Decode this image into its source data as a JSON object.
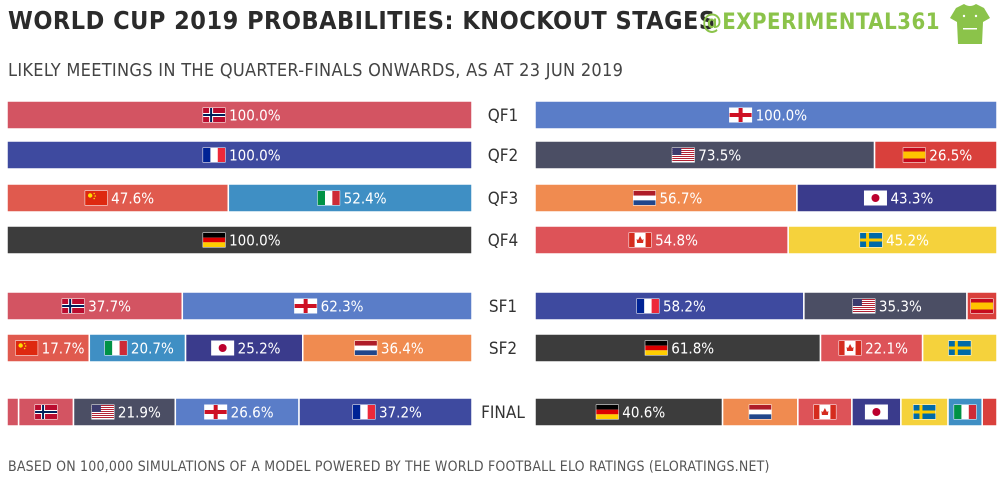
{
  "header": {
    "title": "WORLD CUP 2019 PROBABILITIES: KNOCKOUT STAGES",
    "subtitle": "LIKELY MEETINGS IN THE QUARTER-FINALS ONWARDS, AS AT 23 JUN 2019",
    "handle": "@EXPERIMENTAL361"
  },
  "footer": {
    "note": "BASED ON 100,000 SIMULATIONS OF A MODEL POWERED BY THE WORLD FOOTBALL ELO RATINGS (ELORATINGS.NET)"
  },
  "colors": {
    "NOR": "#d35462",
    "FRA": "#3e4a9f",
    "CHN": "#e05a4e",
    "ITA": "#3f8fc4",
    "GER": "#3c3c3c",
    "ENG": "#5a7dc8",
    "USA": "#4b4e64",
    "ESP": "#d9403c",
    "NED": "#f08b50",
    "JPN": "#3a3b8c",
    "CAN": "#dd5358",
    "SWE": "#f5d23c"
  },
  "chart_data": {
    "type": "bar",
    "stages": [
      "QF1",
      "QF2",
      "QF3",
      "QF4",
      "SF1",
      "SF2",
      "FINAL"
    ],
    "left": [
      [
        {
          "team": "NOR",
          "value": 100.0,
          "label": "100.0%"
        }
      ],
      [
        {
          "team": "FRA",
          "value": 100.0,
          "label": "100.0%"
        }
      ],
      [
        {
          "team": "CHN",
          "value": 47.6,
          "label": "47.6%"
        },
        {
          "team": "ITA",
          "value": 52.4,
          "label": "52.4%"
        }
      ],
      [
        {
          "team": "GER",
          "value": 100.0,
          "label": "100.0%"
        }
      ],
      [
        {
          "team": "NOR",
          "value": 37.7,
          "label": "37.7%"
        },
        {
          "team": "ENG",
          "value": 62.3,
          "label": "62.3%"
        }
      ],
      [
        {
          "team": "CHN",
          "value": 17.7,
          "label": "17.7%"
        },
        {
          "team": "ITA",
          "value": 20.7,
          "label": "20.7%"
        },
        {
          "team": "JPN",
          "value": 25.2,
          "label": "25.2%"
        },
        {
          "team": "NED",
          "value": 36.4,
          "label": "36.4%"
        }
      ],
      [
        {
          "team": "NOR",
          "value": 2.5,
          "label": ""
        },
        {
          "team": "NOR",
          "value": 11.8,
          "label": ""
        },
        {
          "team": "USA",
          "value": 21.9,
          "label": "21.9%"
        },
        {
          "team": "ENG",
          "value": 26.6,
          "label": "26.6%"
        },
        {
          "team": "FRA",
          "value": 37.2,
          "label": "37.2%"
        }
      ]
    ],
    "right": [
      [
        {
          "team": "ENG",
          "value": 100.0,
          "label": "100.0%"
        }
      ],
      [
        {
          "team": "USA",
          "value": 73.5,
          "label": "73.5%"
        },
        {
          "team": "ESP",
          "value": 26.5,
          "label": "26.5%"
        }
      ],
      [
        {
          "team": "NED",
          "value": 56.7,
          "label": "56.7%"
        },
        {
          "team": "JPN",
          "value": 43.3,
          "label": "43.3%"
        }
      ],
      [
        {
          "team": "CAN",
          "value": 54.8,
          "label": "54.8%"
        },
        {
          "team": "SWE",
          "value": 45.2,
          "label": "45.2%"
        }
      ],
      [
        {
          "team": "FRA",
          "value": 58.2,
          "label": "58.2%"
        },
        {
          "team": "USA",
          "value": 35.3,
          "label": "35.3%"
        },
        {
          "team": "ESP",
          "value": 6.5,
          "label": ""
        }
      ],
      [
        {
          "team": "GER",
          "value": 61.8,
          "label": "61.8%"
        },
        {
          "team": "CAN",
          "value": 22.1,
          "label": "22.1%"
        },
        {
          "team": "SWE",
          "value": 16.1,
          "label": ""
        }
      ],
      [
        {
          "team": "GER",
          "value": 40.6,
          "label": "40.6%"
        },
        {
          "team": "NED",
          "value": 16.3,
          "label": ""
        },
        {
          "team": "CAN",
          "value": 11.7,
          "label": ""
        },
        {
          "team": "JPN",
          "value": 10.6,
          "label": ""
        },
        {
          "team": "SWE",
          "value": 10.2,
          "label": ""
        },
        {
          "team": "ITA",
          "value": 7.4,
          "label": ""
        },
        {
          "team": "ESP",
          "value": 3.2,
          "label": ""
        }
      ]
    ]
  }
}
